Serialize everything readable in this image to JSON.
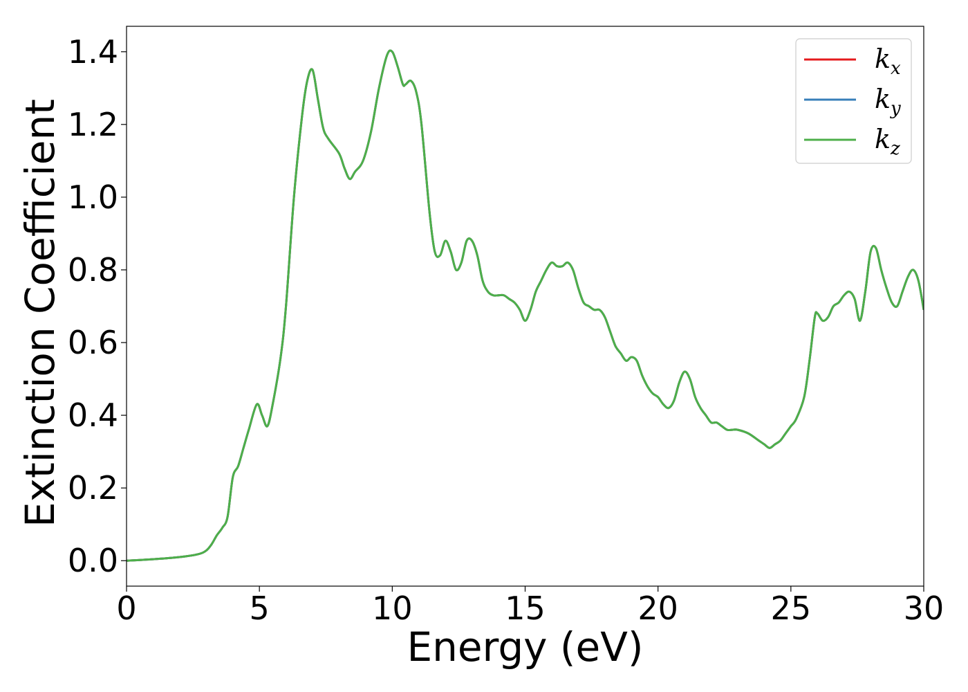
{
  "chart_data": {
    "type": "line",
    "xlabel": "Energy (eV)",
    "ylabel": "Extinction Coefficient",
    "xlim": [
      0,
      30
    ],
    "ylim": [
      -0.07,
      1.47
    ],
    "xticks": [
      0,
      5,
      10,
      15,
      20,
      25,
      30
    ],
    "xtick_labels": [
      "0",
      "5",
      "10",
      "15",
      "20",
      "25",
      "30"
    ],
    "yticks": [
      0.0,
      0.2,
      0.4,
      0.6,
      0.8,
      1.0,
      1.2,
      1.4
    ],
    "ytick_labels": [
      "0.0",
      "0.2",
      "0.4",
      "0.6",
      "0.8",
      "1.0",
      "1.2",
      "1.4"
    ],
    "grid": false,
    "legend_position": "top-right",
    "x": [
      0,
      1,
      2,
      2.7,
      3.0,
      3.2,
      3.4,
      3.6,
      3.8,
      4.0,
      4.2,
      4.4,
      4.6,
      4.9,
      5.1,
      5.3,
      5.5,
      5.8,
      6.0,
      6.3,
      6.6,
      6.8,
      7.0,
      7.2,
      7.4,
      7.6,
      8.0,
      8.2,
      8.4,
      8.6,
      8.9,
      9.2,
      9.5,
      9.8,
      10.0,
      10.2,
      10.4,
      10.5,
      10.7,
      10.9,
      11.1,
      11.4,
      11.6,
      11.8,
      12.0,
      12.2,
      12.4,
      12.6,
      12.8,
      13.0,
      13.2,
      13.4,
      13.6,
      13.8,
      14.0,
      14.2,
      14.4,
      14.6,
      14.8,
      15.0,
      15.2,
      15.4,
      15.6,
      15.8,
      16.0,
      16.2,
      16.4,
      16.6,
      16.8,
      17.0,
      17.2,
      17.4,
      17.6,
      17.8,
      18.0,
      18.2,
      18.4,
      18.6,
      18.8,
      19.0,
      19.2,
      19.4,
      19.6,
      19.8,
      20.0,
      20.2,
      20.4,
      20.6,
      20.8,
      21.0,
      21.2,
      21.4,
      21.6,
      21.8,
      22.0,
      22.2,
      22.4,
      22.6,
      22.8,
      23.0,
      23.4,
      23.8,
      24.0,
      24.2,
      24.4,
      24.6,
      24.8,
      25.0,
      25.2,
      25.5,
      25.7,
      25.9,
      26.0,
      26.2,
      26.4,
      26.6,
      26.8,
      27.0,
      27.2,
      27.4,
      27.6,
      27.8,
      28.0,
      28.2,
      28.4,
      28.6,
      28.8,
      29.0,
      29.2,
      29.4,
      29.6,
      29.8,
      30.0
    ],
    "series": [
      {
        "name": "k_x",
        "color": "#e41a1c",
        "values": [
          0.0,
          0.004,
          0.01,
          0.018,
          0.028,
          0.045,
          0.07,
          0.09,
          0.12,
          0.23,
          0.26,
          0.31,
          0.36,
          0.43,
          0.4,
          0.37,
          0.43,
          0.56,
          0.7,
          1.0,
          1.22,
          1.32,
          1.35,
          1.27,
          1.19,
          1.16,
          1.12,
          1.08,
          1.05,
          1.07,
          1.1,
          1.18,
          1.3,
          1.39,
          1.4,
          1.36,
          1.31,
          1.31,
          1.32,
          1.29,
          1.2,
          0.96,
          0.85,
          0.84,
          0.88,
          0.85,
          0.8,
          0.82,
          0.88,
          0.88,
          0.84,
          0.77,
          0.74,
          0.73,
          0.73,
          0.73,
          0.72,
          0.71,
          0.69,
          0.66,
          0.69,
          0.74,
          0.77,
          0.8,
          0.82,
          0.81,
          0.81,
          0.82,
          0.8,
          0.75,
          0.71,
          0.7,
          0.69,
          0.69,
          0.67,
          0.63,
          0.59,
          0.57,
          0.55,
          0.56,
          0.55,
          0.51,
          0.48,
          0.46,
          0.45,
          0.43,
          0.42,
          0.44,
          0.49,
          0.52,
          0.5,
          0.45,
          0.42,
          0.4,
          0.38,
          0.38,
          0.37,
          0.36,
          0.36,
          0.36,
          0.35,
          0.33,
          0.32,
          0.31,
          0.32,
          0.33,
          0.35,
          0.37,
          0.39,
          0.45,
          0.55,
          0.67,
          0.68,
          0.66,
          0.67,
          0.7,
          0.71,
          0.73,
          0.74,
          0.72,
          0.66,
          0.74,
          0.85,
          0.86,
          0.8,
          0.75,
          0.71,
          0.7,
          0.74,
          0.78,
          0.8,
          0.77,
          0.69
        ]
      },
      {
        "name": "k_y",
        "color": "#377eb8",
        "values": [
          0.0,
          0.004,
          0.01,
          0.018,
          0.028,
          0.045,
          0.07,
          0.09,
          0.12,
          0.23,
          0.26,
          0.31,
          0.36,
          0.43,
          0.4,
          0.37,
          0.43,
          0.56,
          0.7,
          1.0,
          1.22,
          1.32,
          1.35,
          1.27,
          1.19,
          1.16,
          1.12,
          1.08,
          1.05,
          1.07,
          1.1,
          1.18,
          1.3,
          1.39,
          1.4,
          1.36,
          1.31,
          1.31,
          1.32,
          1.29,
          1.2,
          0.96,
          0.85,
          0.84,
          0.88,
          0.85,
          0.8,
          0.82,
          0.88,
          0.88,
          0.84,
          0.77,
          0.74,
          0.73,
          0.73,
          0.73,
          0.72,
          0.71,
          0.69,
          0.66,
          0.69,
          0.74,
          0.77,
          0.8,
          0.82,
          0.81,
          0.81,
          0.82,
          0.8,
          0.75,
          0.71,
          0.7,
          0.69,
          0.69,
          0.67,
          0.63,
          0.59,
          0.57,
          0.55,
          0.56,
          0.55,
          0.51,
          0.48,
          0.46,
          0.45,
          0.43,
          0.42,
          0.44,
          0.49,
          0.52,
          0.5,
          0.45,
          0.42,
          0.4,
          0.38,
          0.38,
          0.37,
          0.36,
          0.36,
          0.36,
          0.35,
          0.33,
          0.32,
          0.31,
          0.32,
          0.33,
          0.35,
          0.37,
          0.39,
          0.45,
          0.55,
          0.67,
          0.68,
          0.66,
          0.67,
          0.7,
          0.71,
          0.73,
          0.74,
          0.72,
          0.66,
          0.74,
          0.85,
          0.86,
          0.8,
          0.75,
          0.71,
          0.7,
          0.74,
          0.78,
          0.8,
          0.77,
          0.69
        ]
      },
      {
        "name": "k_z",
        "color": "#4daf4a",
        "values": [
          0.0,
          0.004,
          0.01,
          0.018,
          0.028,
          0.045,
          0.07,
          0.09,
          0.12,
          0.23,
          0.26,
          0.31,
          0.36,
          0.43,
          0.4,
          0.37,
          0.43,
          0.56,
          0.7,
          1.0,
          1.22,
          1.32,
          1.35,
          1.27,
          1.19,
          1.16,
          1.12,
          1.08,
          1.05,
          1.07,
          1.1,
          1.18,
          1.3,
          1.39,
          1.4,
          1.36,
          1.31,
          1.31,
          1.32,
          1.29,
          1.2,
          0.96,
          0.85,
          0.84,
          0.88,
          0.85,
          0.8,
          0.82,
          0.88,
          0.88,
          0.84,
          0.77,
          0.74,
          0.73,
          0.73,
          0.73,
          0.72,
          0.71,
          0.69,
          0.66,
          0.69,
          0.74,
          0.77,
          0.8,
          0.82,
          0.81,
          0.81,
          0.82,
          0.8,
          0.75,
          0.71,
          0.7,
          0.69,
          0.69,
          0.67,
          0.63,
          0.59,
          0.57,
          0.55,
          0.56,
          0.55,
          0.51,
          0.48,
          0.46,
          0.45,
          0.43,
          0.42,
          0.44,
          0.49,
          0.52,
          0.5,
          0.45,
          0.42,
          0.4,
          0.38,
          0.38,
          0.37,
          0.36,
          0.36,
          0.36,
          0.35,
          0.33,
          0.32,
          0.31,
          0.32,
          0.33,
          0.35,
          0.37,
          0.39,
          0.45,
          0.55,
          0.67,
          0.68,
          0.66,
          0.67,
          0.7,
          0.71,
          0.73,
          0.74,
          0.72,
          0.66,
          0.74,
          0.85,
          0.86,
          0.8,
          0.75,
          0.71,
          0.7,
          0.74,
          0.78,
          0.8,
          0.77,
          0.69
        ]
      }
    ],
    "legend": [
      {
        "base": "k",
        "sub": "x",
        "color": "#e41a1c"
      },
      {
        "base": "k",
        "sub": "y",
        "color": "#377eb8"
      },
      {
        "base": "k",
        "sub": "z",
        "color": "#4daf4a"
      }
    ]
  }
}
